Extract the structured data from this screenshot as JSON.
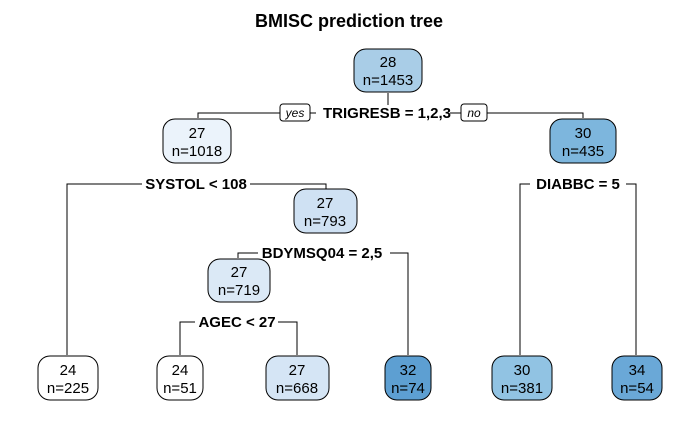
{
  "title": "BMISC prediction tree",
  "tree": {
    "nodes": [
      {
        "id": "root",
        "value": "28",
        "n": "n=1453",
        "fill": "#a9cde7"
      },
      {
        "id": "l",
        "value": "27",
        "n": "n=1018",
        "fill": "#ebf3fb"
      },
      {
        "id": "r",
        "value": "30",
        "n": "n=435",
        "fill": "#7db6dd"
      },
      {
        "id": "ll",
        "value": "24",
        "n": "n=225",
        "fill": "#ffffff"
      },
      {
        "id": "lr",
        "value": "27",
        "n": "n=793",
        "fill": "#cfe1f3"
      },
      {
        "id": "lrl",
        "value": "27",
        "n": "n=719",
        "fill": "#dbe9f6"
      },
      {
        "id": "lrll",
        "value": "24",
        "n": "n=51",
        "fill": "#ffffff"
      },
      {
        "id": "lrlr",
        "value": "27",
        "n": "n=668",
        "fill": "#d5e5f5"
      },
      {
        "id": "lrr",
        "value": "32",
        "n": "n=74",
        "fill": "#5d9fd2"
      },
      {
        "id": "rl",
        "value": "30",
        "n": "n=381",
        "fill": "#91c3e3"
      },
      {
        "id": "rr",
        "value": "34",
        "n": "n=54",
        "fill": "#6aa8d7"
      }
    ],
    "splits": [
      {
        "id": "split-trigresb",
        "label": "TRIGRESB = 1,2,3"
      },
      {
        "id": "split-systol",
        "label": "SYSTOL < 108"
      },
      {
        "id": "split-diabbc",
        "label": "DIABBC = 5"
      },
      {
        "id": "split-bdymsq04",
        "label": "BDYMSQ04 = 2,5"
      },
      {
        "id": "split-agec",
        "label": "AGEC < 27"
      }
    ],
    "yes_label": "yes",
    "no_label": "no"
  }
}
